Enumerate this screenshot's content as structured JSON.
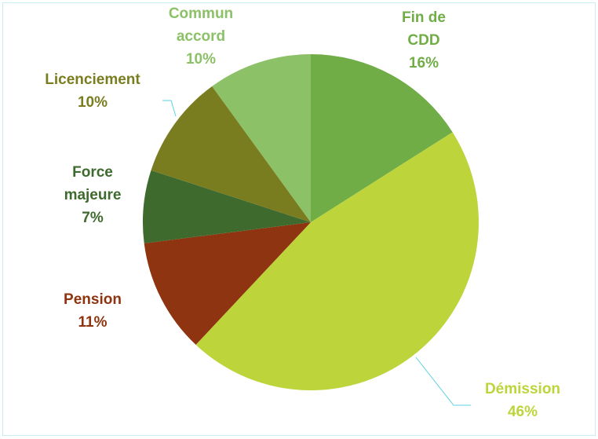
{
  "chart_data": {
    "type": "pie",
    "categories": [
      "Fin de CDD",
      "Démission",
      "Pension",
      "Force majeure",
      "Licenciement",
      "Commun accord"
    ],
    "values": [
      16,
      46,
      11,
      7,
      10,
      10
    ],
    "value_labels": [
      "16%",
      "46%",
      "11%",
      "7%",
      "10%",
      "10%"
    ],
    "colors": [
      "#70ad47",
      "#bdd43a",
      "#8e3410",
      "#3f6a2e",
      "#7a7d1f",
      "#8cc168"
    ]
  }
}
